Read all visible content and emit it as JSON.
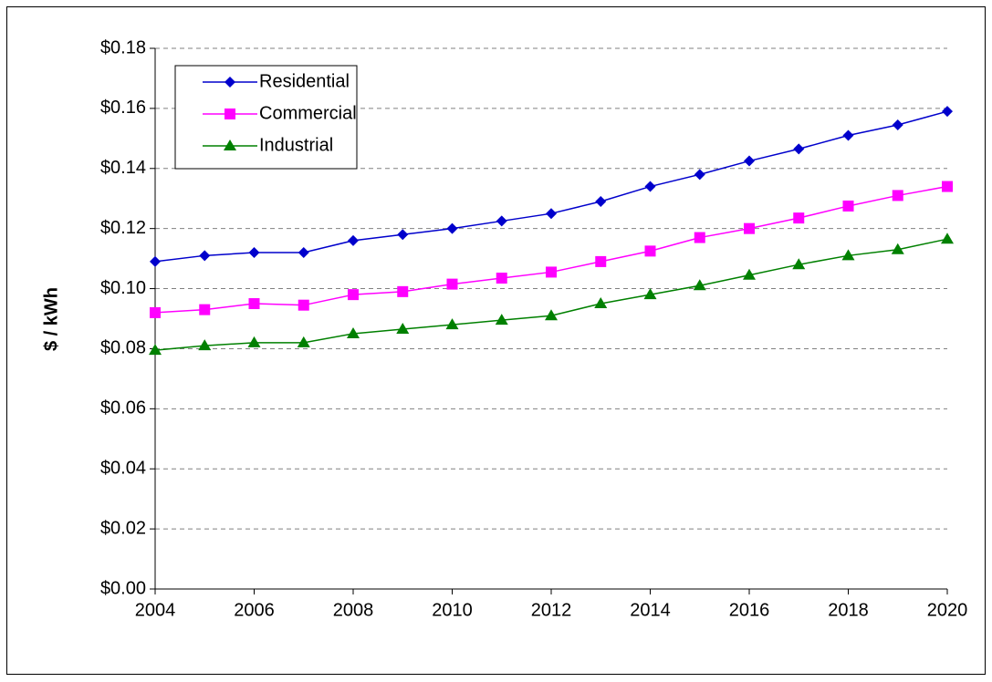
{
  "chart_data": {
    "type": "line",
    "ylabel": "$ / kWh",
    "x": [
      2004,
      2005,
      2006,
      2007,
      2008,
      2009,
      2010,
      2011,
      2012,
      2013,
      2014,
      2015,
      2016,
      2017,
      2018,
      2019,
      2020
    ],
    "series": [
      {
        "name": "Residential",
        "color": "#0000cc",
        "marker": "diamond",
        "values": [
          0.109,
          0.111,
          0.112,
          0.112,
          0.116,
          0.118,
          0.12,
          0.1225,
          0.125,
          0.129,
          0.134,
          0.138,
          0.1425,
          0.1465,
          0.151,
          0.1545,
          0.159
        ]
      },
      {
        "name": "Commercial",
        "color": "#ff00ff",
        "marker": "square",
        "values": [
          0.092,
          0.093,
          0.095,
          0.0945,
          0.098,
          0.099,
          0.1015,
          0.1035,
          0.1055,
          0.109,
          0.1125,
          0.117,
          0.12,
          0.1235,
          0.1275,
          0.131,
          0.134
        ]
      },
      {
        "name": "Industrial",
        "color": "#008000",
        "marker": "triangle",
        "values": [
          0.0795,
          0.081,
          0.082,
          0.082,
          0.085,
          0.0865,
          0.088,
          0.0895,
          0.091,
          0.095,
          0.098,
          0.101,
          0.1045,
          0.108,
          0.111,
          0.113,
          0.1165
        ]
      }
    ],
    "xlim": [
      2004,
      2020
    ],
    "xticks": [
      2004,
      2006,
      2008,
      2010,
      2012,
      2014,
      2016,
      2018,
      2020
    ],
    "ylim": [
      0,
      0.18
    ],
    "yticks": [
      {
        "value": 0,
        "label": "$0.00"
      },
      {
        "value": 0.02,
        "label": "$0.02"
      },
      {
        "value": 0.04,
        "label": "$0.04"
      },
      {
        "value": 0.06,
        "label": "$0.06"
      },
      {
        "value": 0.08,
        "label": "$0.08"
      },
      {
        "value": 0.1,
        "label": "$0.10"
      },
      {
        "value": 0.12,
        "label": "$0.12"
      },
      {
        "value": 0.14,
        "label": "$0.14"
      },
      {
        "value": 0.16,
        "label": "$0.16"
      },
      {
        "value": 0.18,
        "label": "$0.18"
      }
    ],
    "grid": true,
    "legend": "upper left"
  }
}
